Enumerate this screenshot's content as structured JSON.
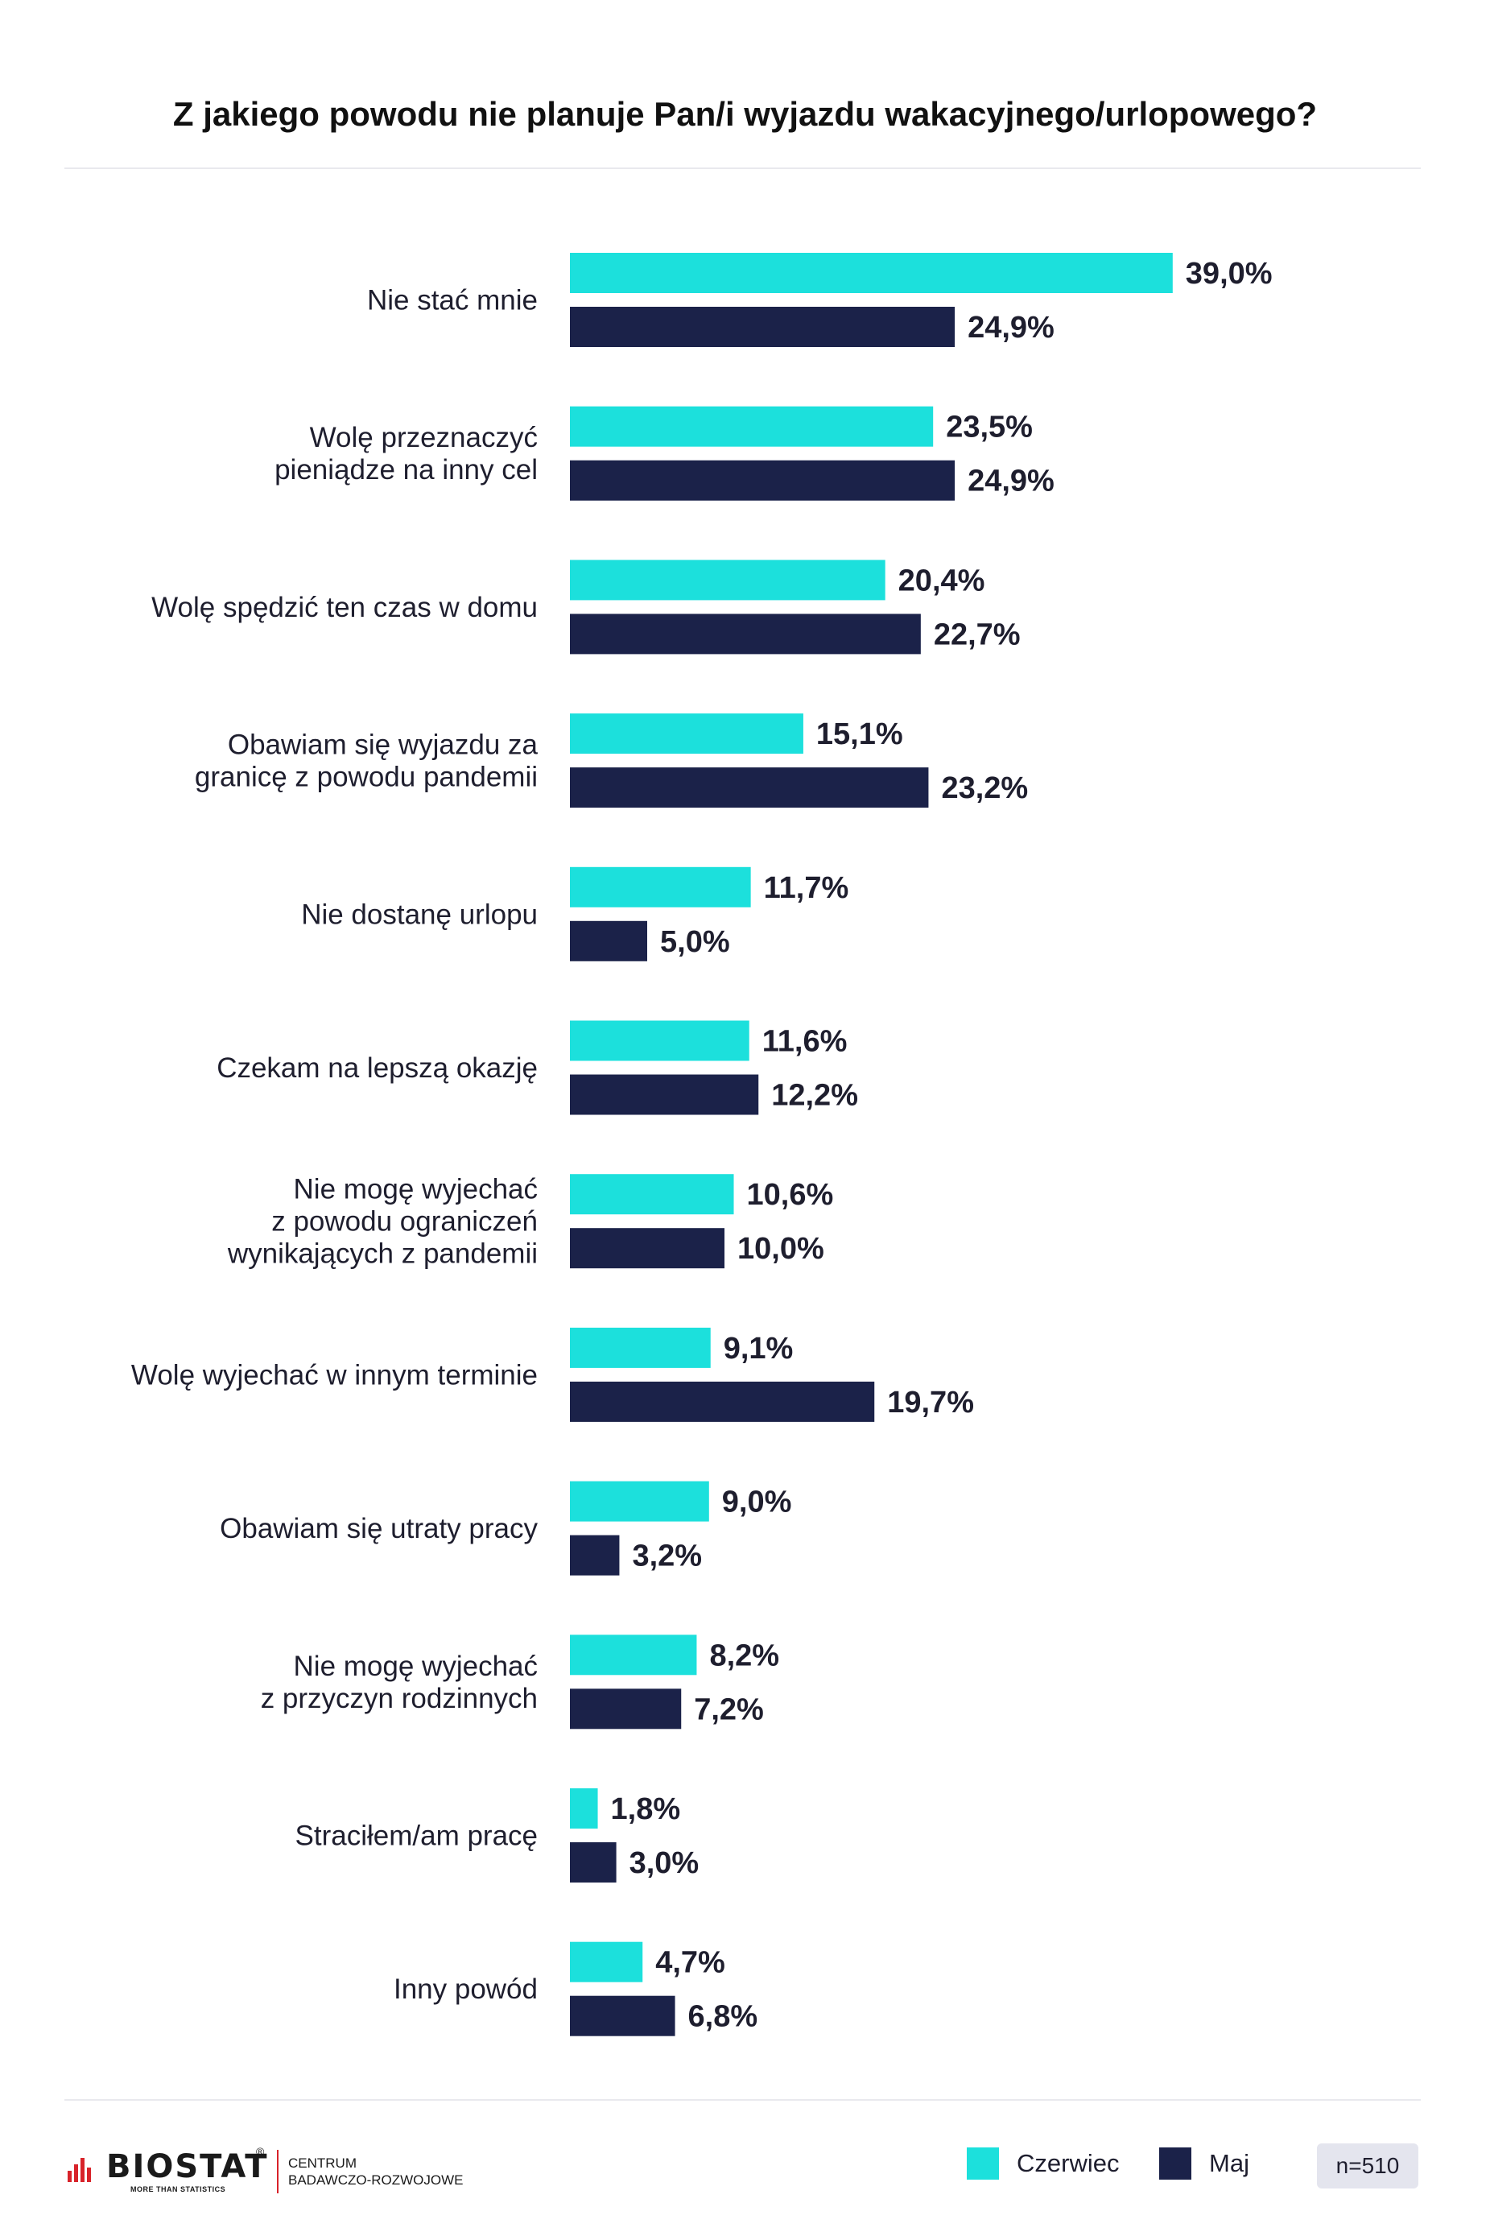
{
  "chart_data": {
    "type": "bar",
    "orientation": "horizontal",
    "title": "Z jakiego powodu nie planuje Pan/i wyjazdu wakacyjnego/urlopowego?",
    "categories": [
      [
        "Nie stać mnie"
      ],
      [
        "Wolę przeznaczyć",
        "pieniądze na inny cel"
      ],
      [
        "Wolę spędzić ten czas w domu"
      ],
      [
        "Obawiam się wyjazdu za",
        "granicę z powodu pandemii"
      ],
      [
        "Nie dostanę urlopu"
      ],
      [
        "Czekam na lepszą okazję"
      ],
      [
        "Nie mogę wyjechać",
        "z powodu ograniczeń",
        "wynikających z pandemii"
      ],
      [
        "Wolę wyjechać w innym terminie"
      ],
      [
        "Obawiam się utraty pracy"
      ],
      [
        "Nie mogę wyjechać",
        "z przyczyn rodzinnych"
      ],
      [
        "Straciłem/am pracę"
      ],
      [
        "Inny powód"
      ]
    ],
    "series": [
      {
        "name": "Czerwiec",
        "color": "#1ce0dc",
        "values": [
          39.0,
          23.5,
          20.4,
          15.1,
          11.7,
          11.6,
          10.6,
          9.1,
          9.0,
          8.2,
          1.8,
          4.7
        ],
        "labels": [
          "39,0%",
          "23,5%",
          "20,4%",
          "15,1%",
          "11,7%",
          "11,6%",
          "10,6%",
          "9,1%",
          "9,0%",
          "8,2%",
          "1,8%",
          "4,7%"
        ]
      },
      {
        "name": "Maj",
        "color": "#1b2249",
        "values": [
          24.9,
          24.9,
          22.7,
          23.2,
          5.0,
          12.2,
          10.0,
          19.7,
          3.2,
          7.2,
          3.0,
          6.8
        ],
        "labels": [
          "24,9%",
          "24,9%",
          "22,7%",
          "23,2%",
          "5,0%",
          "12,2%",
          "10,0%",
          "19,7%",
          "3,2%",
          "7,2%",
          "3,0%",
          "6,8%"
        ]
      }
    ],
    "xlim": [
      0,
      40
    ],
    "grid": false,
    "legend_position": "bottom-right"
  },
  "legend": {
    "czerwiec": "Czerwiec",
    "maj": "Maj"
  },
  "sample_size": "n=510",
  "logo": {
    "brand": "BIOSTAT",
    "registered": "®",
    "tagline": "MORE THAN STATISTICS",
    "centre_line1": "CENTRUM",
    "centre_line2": "BADAWCZO-ROZWOJOWE"
  }
}
